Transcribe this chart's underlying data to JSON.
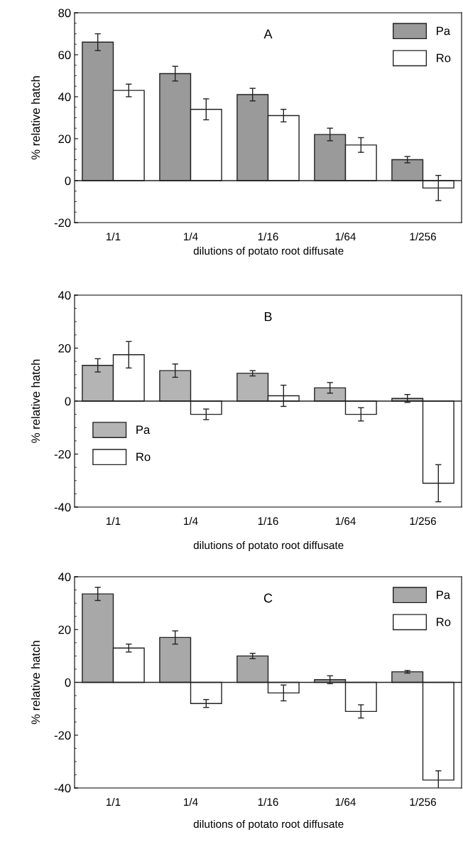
{
  "chart_data": [
    {
      "type": "bar",
      "title": "A",
      "xlabel": "dilutions of potato root diffusate",
      "ylabel": "% relative hatch",
      "categories": [
        "1/1",
        "1/4",
        "1/16",
        "1/64",
        "1/256"
      ],
      "ylim": [
        -20,
        80
      ],
      "yticks": [
        -20,
        0,
        20,
        40,
        60,
        80
      ],
      "ref_lines": [
        {
          "axis": "y",
          "value": 0
        }
      ],
      "legend": "top right",
      "series": [
        {
          "name": "Pa",
          "color": "#9a9a9a",
          "values": [
            66,
            51,
            41,
            22,
            10
          ],
          "errors": [
            4,
            3.5,
            3,
            3,
            1.5
          ]
        },
        {
          "name": "Ro",
          "color": "#ffffff",
          "values": [
            43,
            34,
            31,
            17,
            -3.5
          ],
          "errors": [
            3,
            5,
            3,
            3.5,
            6
          ]
        }
      ]
    },
    {
      "type": "bar",
      "title": "B",
      "xlabel": "dilutions of potato root diffusate",
      "ylabel": "% relative hatch",
      "categories": [
        "1/1",
        "1/4",
        "1/16",
        "1/64",
        "1/256"
      ],
      "ylim": [
        -40,
        40
      ],
      "yticks": [
        -40,
        -20,
        0,
        20,
        40
      ],
      "ref_lines": [
        {
          "axis": "y",
          "value": 0
        }
      ],
      "legend": "center left",
      "series": [
        {
          "name": "Pa",
          "color": "#b4b4b4",
          "values": [
            13.5,
            11.5,
            10.5,
            5,
            1
          ],
          "errors": [
            2.5,
            2.5,
            1,
            2,
            1.5
          ]
        },
        {
          "name": "Ro",
          "color": "#ffffff",
          "values": [
            17.5,
            -5,
            2,
            -5,
            -31
          ],
          "errors": [
            5,
            2,
            4,
            2.5,
            7
          ]
        }
      ]
    },
    {
      "type": "bar",
      "title": "C",
      "xlabel": "dilutions of potato root diffusate",
      "ylabel": "% relative hatch",
      "categories": [
        "1/1",
        "1/4",
        "1/16",
        "1/64",
        "1/256"
      ],
      "ylim": [
        -40,
        40
      ],
      "yticks": [
        -40,
        -20,
        0,
        20,
        40
      ],
      "ref_lines": [
        {
          "axis": "y",
          "value": 0
        }
      ],
      "legend": "top right",
      "series": [
        {
          "name": "Pa",
          "color": "#a8a8a8",
          "values": [
            33.5,
            17,
            10,
            1,
            4
          ],
          "errors": [
            2.5,
            2.5,
            1,
            1.5,
            0.5
          ]
        },
        {
          "name": "Ro",
          "color": "#ffffff",
          "values": [
            13,
            -8,
            -4,
            -11,
            -37
          ],
          "errors": [
            1.5,
            1.5,
            3,
            2.5,
            3.5
          ]
        }
      ]
    }
  ]
}
